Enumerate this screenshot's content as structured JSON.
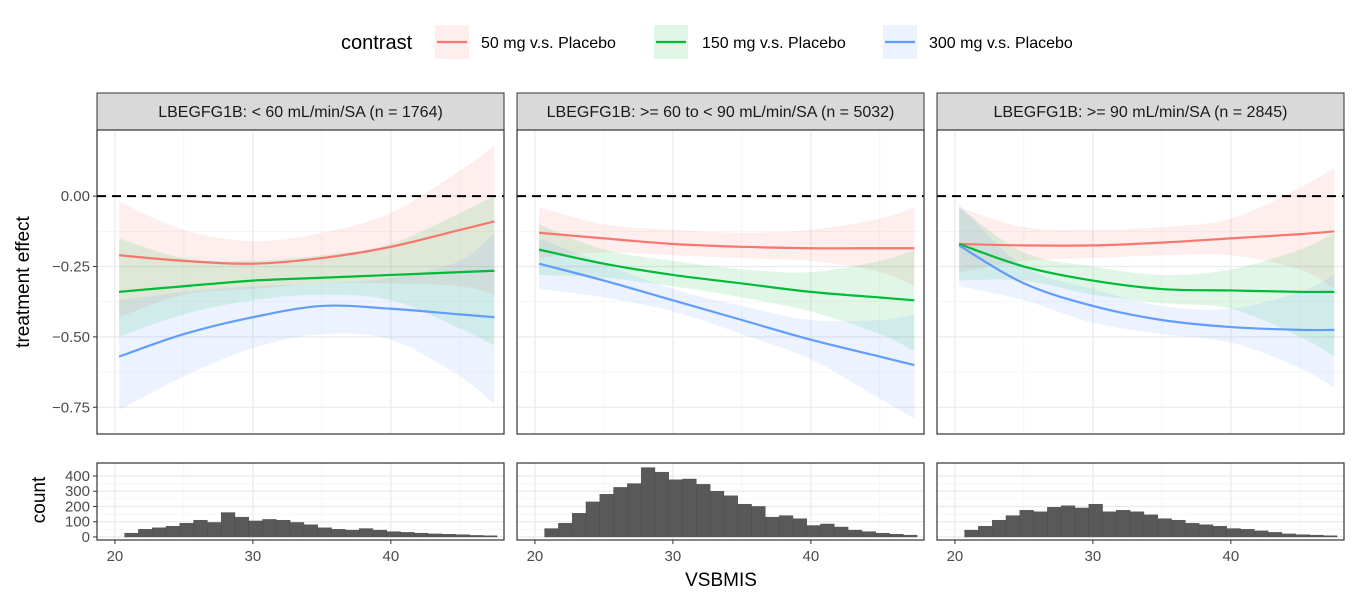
{
  "legend": {
    "title": "contrast",
    "entries": [
      {
        "label": "50 mg v.s. Placebo",
        "color": "#F8766D"
      },
      {
        "label": "150 mg v.s. Placebo",
        "color": "#00BA38"
      },
      {
        "label": "300 mg v.s. Placebo",
        "color": "#619CFF"
      }
    ]
  },
  "axes": {
    "xlabel": "VSBMIS",
    "ylabel_top": "treatment effect",
    "ylabel_bottom": "count",
    "x_ticks": [
      20,
      30,
      40
    ],
    "x_tick_labels": [
      "20",
      "30",
      "40"
    ],
    "y_ticks_top": [
      0.0,
      -0.25,
      -0.5,
      -0.75
    ],
    "y_tick_labels_top": [
      "0.00",
      "−0.25",
      "−0.50",
      "−0.75"
    ],
    "y_ticks_bottom": [
      0,
      100,
      200,
      300,
      400
    ],
    "y_tick_labels_bottom": [
      "0",
      "100",
      "200",
      "300",
      "400"
    ]
  },
  "chart_data": {
    "type": "line",
    "title": "",
    "xlim": [
      18.7,
      48.2
    ],
    "ylim_effect": [
      -0.845,
      0.235
    ],
    "ylim_count": [
      -20,
      485
    ],
    "reference_line_y": 0,
    "panels": [
      {
        "strip": "LBEGFG1B: < 60 mL/min/SA (n = 1764)",
        "x": [
          20.3,
          25,
          30,
          35,
          40,
          45,
          47.5
        ],
        "series": [
          {
            "name": "50 mg v.s. Placebo",
            "mean": [
              -0.21,
              -0.23,
              -0.24,
              -0.22,
              -0.18,
              -0.12,
              -0.09
            ],
            "lower": [
              -0.43,
              -0.35,
              -0.33,
              -0.31,
              -0.31,
              -0.32,
              -0.35
            ],
            "upper": [
              -0.02,
              -0.12,
              -0.16,
              -0.13,
              -0.06,
              0.09,
              0.18
            ]
          },
          {
            "name": "150 mg v.s. Placebo",
            "mean": [
              -0.34,
              -0.32,
              -0.3,
              -0.29,
              -0.28,
              -0.27,
              -0.265
            ],
            "lower": [
              -0.5,
              -0.42,
              -0.37,
              -0.35,
              -0.37,
              -0.47,
              -0.53
            ],
            "upper": [
              -0.15,
              -0.22,
              -0.23,
              -0.21,
              -0.17,
              -0.06,
              0.0
            ]
          },
          {
            "name": "300 mg v.s. Placebo",
            "mean": [
              -0.57,
              -0.49,
              -0.43,
              -0.39,
              -0.4,
              -0.42,
              -0.43
            ],
            "lower": [
              -0.76,
              -0.64,
              -0.54,
              -0.49,
              -0.51,
              -0.64,
              -0.74
            ],
            "upper": [
              -0.37,
              -0.34,
              -0.32,
              -0.31,
              -0.29,
              -0.23,
              -0.13
            ]
          }
        ],
        "histogram": {
          "bin_width": 1,
          "bin_starts": [
            20.7,
            21.7,
            22.7,
            23.7,
            24.7,
            25.7,
            26.7,
            27.7,
            28.7,
            29.7,
            30.7,
            31.7,
            32.7,
            33.7,
            34.7,
            35.7,
            36.7,
            37.7,
            38.7,
            39.7,
            40.7,
            41.7,
            42.7,
            43.7,
            44.7,
            45.7,
            46.7
          ],
          "counts": [
            25,
            50,
            60,
            70,
            90,
            110,
            95,
            160,
            130,
            105,
            115,
            110,
            95,
            80,
            60,
            50,
            45,
            55,
            45,
            35,
            30,
            25,
            20,
            18,
            15,
            10,
            8
          ]
        }
      },
      {
        "strip": "LBEGFG1B: >= 60 to < 90 mL/min/SA (n = 5032)",
        "x": [
          20.3,
          25,
          30,
          35,
          40,
          45,
          47.5
        ],
        "series": [
          {
            "name": "50 mg v.s. Placebo",
            "mean": [
              -0.13,
              -0.15,
              -0.17,
              -0.18,
              -0.185,
              -0.185,
              -0.185
            ],
            "lower": [
              -0.22,
              -0.2,
              -0.21,
              -0.22,
              -0.23,
              -0.27,
              -0.32
            ],
            "upper": [
              -0.04,
              -0.1,
              -0.12,
              -0.13,
              -0.12,
              -0.08,
              -0.04
            ]
          },
          {
            "name": "150 mg v.s. Placebo",
            "mean": [
              -0.19,
              -0.24,
              -0.28,
              -0.31,
              -0.34,
              -0.36,
              -0.37
            ],
            "lower": [
              -0.28,
              -0.29,
              -0.32,
              -0.36,
              -0.41,
              -0.49,
              -0.55
            ],
            "upper": [
              -0.1,
              -0.19,
              -0.23,
              -0.26,
              -0.27,
              -0.23,
              -0.19
            ]
          },
          {
            "name": "300 mg v.s. Placebo",
            "mean": [
              -0.24,
              -0.3,
              -0.37,
              -0.44,
              -0.51,
              -0.57,
              -0.6
            ],
            "lower": [
              -0.33,
              -0.36,
              -0.41,
              -0.49,
              -0.58,
              -0.72,
              -0.79
            ],
            "upper": [
              -0.15,
              -0.24,
              -0.33,
              -0.39,
              -0.44,
              -0.44,
              -0.42
            ]
          }
        ],
        "histogram": {
          "bin_width": 1,
          "bin_starts": [
            20.7,
            21.7,
            22.7,
            23.7,
            24.7,
            25.7,
            26.7,
            27.7,
            28.7,
            29.7,
            30.7,
            31.7,
            32.7,
            33.7,
            34.7,
            35.7,
            36.7,
            37.7,
            38.7,
            39.7,
            40.7,
            41.7,
            42.7,
            43.7,
            44.7,
            45.7,
            46.7
          ],
          "counts": [
            55,
            90,
            155,
            230,
            280,
            325,
            350,
            455,
            425,
            375,
            380,
            345,
            300,
            270,
            215,
            200,
            130,
            140,
            120,
            75,
            85,
            65,
            45,
            35,
            25,
            18,
            12
          ]
        }
      },
      {
        "strip": "LBEGFG1B: >= 90 mL/min/SA (n = 2845)",
        "x": [
          20.3,
          25,
          30,
          35,
          40,
          45,
          47.5
        ],
        "series": [
          {
            "name": "50 mg v.s. Placebo",
            "mean": [
              -0.17,
              -0.175,
              -0.175,
              -0.165,
              -0.15,
              -0.135,
              -0.125
            ],
            "lower": [
              -0.27,
              -0.23,
              -0.22,
              -0.21,
              -0.21,
              -0.26,
              -0.33
            ],
            "upper": [
              -0.04,
              -0.11,
              -0.12,
              -0.11,
              -0.08,
              0.03,
              0.1
            ]
          },
          {
            "name": "150 mg v.s. Placebo",
            "mean": [
              -0.17,
              -0.25,
              -0.3,
              -0.33,
              -0.335,
              -0.34,
              -0.34
            ],
            "lower": [
              -0.3,
              -0.3,
              -0.35,
              -0.38,
              -0.4,
              -0.5,
              -0.57
            ],
            "upper": [
              -0.04,
              -0.2,
              -0.25,
              -0.28,
              -0.26,
              -0.19,
              -0.13
            ]
          },
          {
            "name": "300 mg v.s. Placebo",
            "mean": [
              -0.175,
              -0.31,
              -0.39,
              -0.44,
              -0.465,
              -0.475,
              -0.475
            ],
            "lower": [
              -0.32,
              -0.37,
              -0.45,
              -0.49,
              -0.52,
              -0.61,
              -0.68
            ],
            "upper": [
              -0.03,
              -0.25,
              -0.33,
              -0.39,
              -0.4,
              -0.34,
              -0.28
            ]
          }
        ],
        "histogram": {
          "bin_width": 1,
          "bin_starts": [
            20.7,
            21.7,
            22.7,
            23.7,
            24.7,
            25.7,
            26.7,
            27.7,
            28.7,
            29.7,
            30.7,
            31.7,
            32.7,
            33.7,
            34.7,
            35.7,
            36.7,
            37.7,
            38.7,
            39.7,
            40.7,
            41.7,
            42.7,
            43.7,
            44.7,
            45.7,
            46.7
          ],
          "counts": [
            45,
            70,
            110,
            140,
            175,
            165,
            195,
            205,
            190,
            215,
            165,
            175,
            165,
            145,
            120,
            110,
            90,
            80,
            70,
            55,
            50,
            40,
            30,
            20,
            15,
            12,
            8
          ]
        }
      }
    ]
  }
}
